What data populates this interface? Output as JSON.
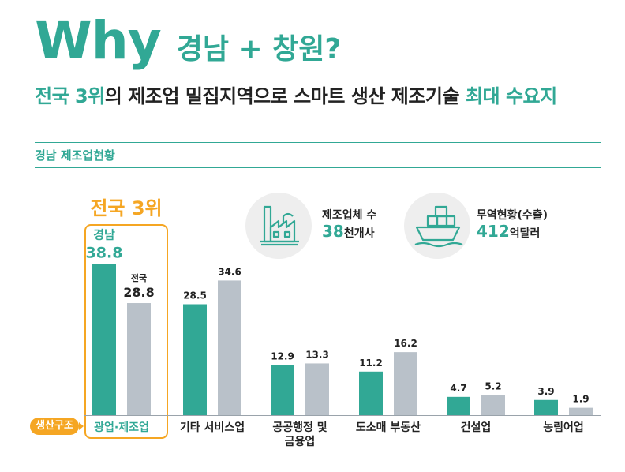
{
  "header": {
    "title_en": "Why",
    "title_kr": "경남 + 창원?"
  },
  "subtitle": {
    "part1": "전국 3위",
    "part2": "의 제조업 밀집지역으로 스마트 생산 제조기술 ",
    "part3": "최대 수요지"
  },
  "section": {
    "title": "경남 제조업현황"
  },
  "rank_badge": {
    "label": "전국 3위"
  },
  "stats": [
    {
      "label": "제조업체 수",
      "value": "38",
      "unit": "천개사",
      "icon": "factory-icon"
    },
    {
      "label": "무역현황(수출)",
      "value": "412",
      "unit": "억달러",
      "icon": "cargo-ship-icon"
    }
  ],
  "axis_label": "생산구조",
  "colors": {
    "accent": "#31a895",
    "gray": "#b9c1c9",
    "orange": "#f5a623"
  },
  "chart_data": {
    "type": "bar",
    "title": "경남 제조업현황",
    "categories": [
      "광업·제조업",
      "기타 서비스업",
      "공공행정 및\n금융업",
      "도소매 부동산",
      "건설업",
      "농림어업"
    ],
    "series": [
      {
        "name": "경남",
        "values": [
          38.8,
          28.5,
          12.9,
          11.2,
          4.7,
          3.9
        ]
      },
      {
        "name": "전국",
        "values": [
          28.8,
          34.6,
          13.3,
          16.2,
          5.2,
          1.9
        ]
      }
    ],
    "value_labels": [
      [
        "38.8",
        "28.5",
        "12.9",
        "11.2",
        "4.7",
        "3.9"
      ],
      [
        "28.8",
        "34.6",
        "13.3",
        "16.2",
        "5.2",
        "1.9"
      ]
    ],
    "series_labels": [
      "경남",
      "전국"
    ],
    "ylim": [
      0,
      40
    ]
  }
}
